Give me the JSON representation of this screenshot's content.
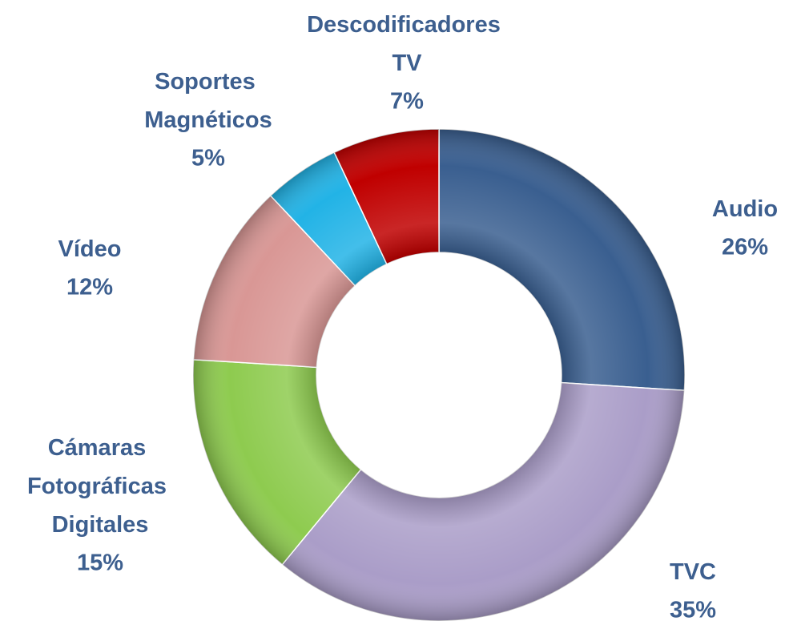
{
  "chart_data": {
    "type": "donut",
    "categories": [
      "Audio",
      "TVC",
      "Cámaras Fotográficas Digitales",
      "Vídeo",
      "Soportes Magnéticos",
      "Descodificadores TV"
    ],
    "values": [
      26,
      35,
      15,
      12,
      5,
      7
    ],
    "value_labels": [
      "26%",
      "35%",
      "15%",
      "12%",
      "5%",
      "7%"
    ],
    "colors": [
      "#3a5f90",
      "#aa9dc8",
      "#8ecb4f",
      "#d99795",
      "#22b3e6",
      "#c00000"
    ]
  }
}
